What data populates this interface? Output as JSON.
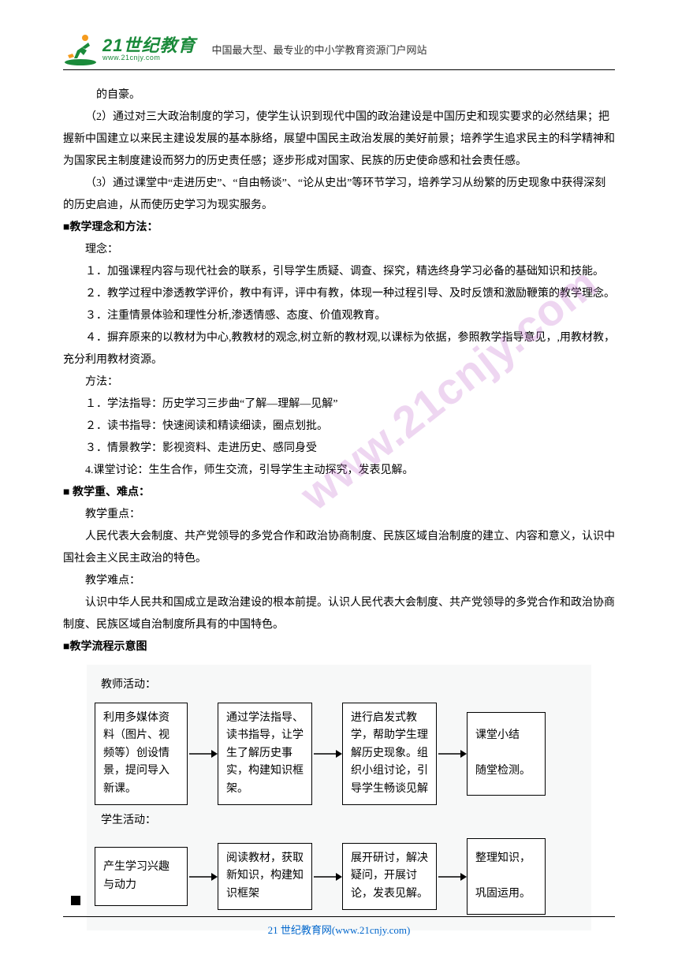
{
  "header": {
    "logo_main": "21世纪教育",
    "logo_sub": "www.21cnjy.com",
    "tagline": "中国最大型、最专业的中小学教育资源门户网站"
  },
  "watermark": "www.21cnjy.com",
  "body": {
    "p0": "的自豪。",
    "p1": "（2）通过对三大政治制度的学习，使学生认识到现代中国的政治建设是中国历史和现实要求的必然结果；把握新中国建立以来民主建设发展的基本脉络，展望中国民主政治发展的美好前景；培养学生追求民主的科学精神和为国家民主制度建设而努力的历史责任感；逐步形成对国家、民族的历史使命感和社会责任感。",
    "p2": "（3）通过课堂中“走进历史”、“自由畅谈”、“论从史出”等环节学习，培养学习从纷繁的历史现象中获得深刻的历史启迪，从而使历史学习为现实服务。",
    "h1": "■教学理念和方法：",
    "p3": "理念：",
    "p4": "１．加强课程内容与现代社会的联系，引导学生质疑、调查、探究，精选终身学习必备的基础知识和技能。",
    "p5": "２．教学过程中渗透教学评价，教中有评，评中有教，体现一种过程引导、及时反馈和激励鞭策的教学理念。",
    "p6": "３．注重情景体验和理性分析,渗透情感、态度、价值观教育。",
    "p7": "４．摒弃原来的以教材为中心,教教材的观念,树立新的教材观,以课标为依据，参照教学指导意见，,用教材教，充分利用教材资源。",
    "p8": "方法：",
    "p9": "１．学法指导：历史学习三步曲“了解—理解—见解”",
    "p10": "２．读书指导：快速阅读和精读细读，圈点划批。",
    "p11": "３．情景教学：影视资料、走进历史、感同身受",
    "p12": "4.课堂讨论：生生合作，师生交流，引导学生主动探究，发表见解。",
    "h2": "■   教学重、难点：",
    "p13": "教学重点：",
    "p14": "人民代表大会制度、共产党领导的多党合作和政治协商制度、民族区域自治制度的建立、内容和意义，认识中国社会主义民主政治的特色。",
    "p15": "教学难点：",
    "p16": "认识中华人民共和国成立是政治建设的根本前提。认识人民代表大会制度、共产党领导的多党合作和政治协商制度、民族区域自治制度所具有的中国特色。",
    "h3": "■教学流程示意图"
  },
  "flowchart": {
    "type": "flowchart",
    "background_color": "#f7f8f8",
    "box_border_color": "#000000",
    "box_bg_color": "#ffffff",
    "arrow_color": "#000000",
    "font_size": 14,
    "teacher_label": "教师活动：",
    "student_label": "学生活动：",
    "teacher_nodes": [
      "利用多媒体资料（图片、视频等）创设情景，提问导入新课。",
      "通过学法指导、读书指导，让学生了解历史事实，构建知识框架。",
      "进行启发式教学，帮助学生理解历史现象。组织小组讨论，引导学生畅谈见解",
      "课堂小结\n\n随堂检测。"
    ],
    "student_nodes": [
      "产生学习兴趣与动力",
      "阅读教材，获取新知识，构建知识框架",
      "展开研讨，解决疑问，开展讨论，发表见解。",
      "整理知识，\n\n巩固运用。"
    ]
  },
  "footer": {
    "site_name": "21 世纪教育网",
    "url": "(www.21cnjy.com)"
  },
  "colors": {
    "logo_green": "#1a8a3a",
    "logo_orange": "#f59b1e",
    "link_blue": "#0066cc",
    "watermark_purple": "rgba(200,120,210,0.30)"
  }
}
